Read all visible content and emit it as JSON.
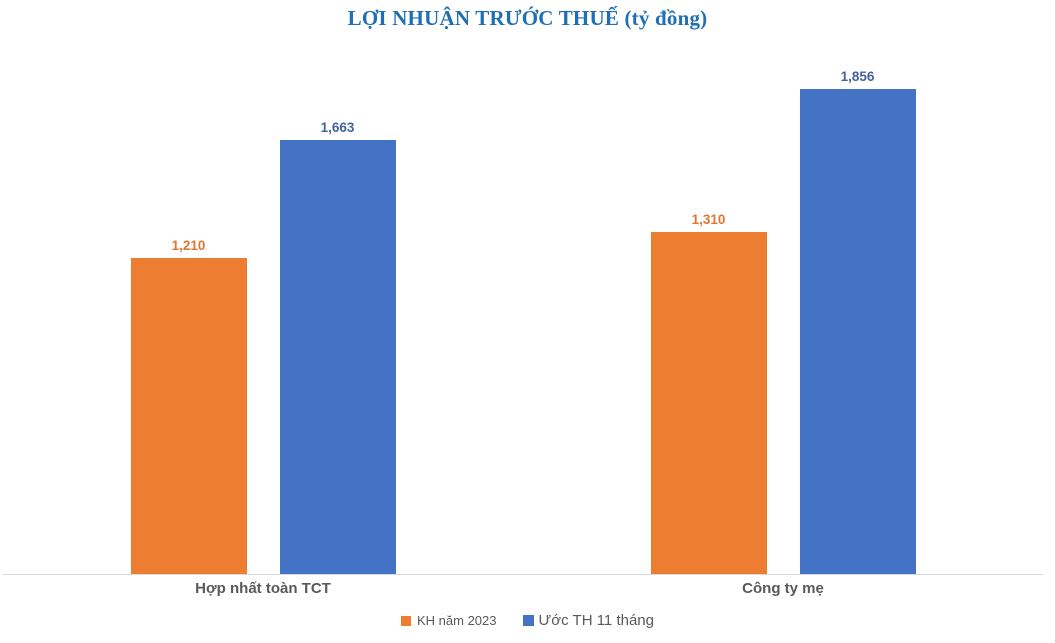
{
  "chart_data": {
    "type": "bar",
    "title": "LỢI NHUẬN TRƯỚC THUẾ (tỷ đồng)",
    "title_color": "#1F6FB5",
    "categories": [
      "Hợp nhất toàn TCT",
      "Công ty mẹ"
    ],
    "series": [
      {
        "name": "KH năm 2023",
        "values": [
          1210,
          1310
        ],
        "labels": [
          "1,210",
          "1,310"
        ],
        "color": "#ED7D31",
        "label_color": "#E0762F"
      },
      {
        "name": "Ước TH 11 tháng",
        "values": [
          1663,
          1856
        ],
        "labels": [
          "1,663",
          "1,856"
        ],
        "color": "#4472C4",
        "label_color": "#44639E"
      }
    ],
    "ylabel": "",
    "xlabel": "",
    "ylim": [
      0,
      2000
    ],
    "grid": false,
    "y_axis_visible": false,
    "legend_position": "bottom",
    "axis_line_color": "#D9D9D9",
    "category_label_color": "#595959",
    "legend_text_color": "#595959",
    "background_color": "#FFFFFF"
  }
}
